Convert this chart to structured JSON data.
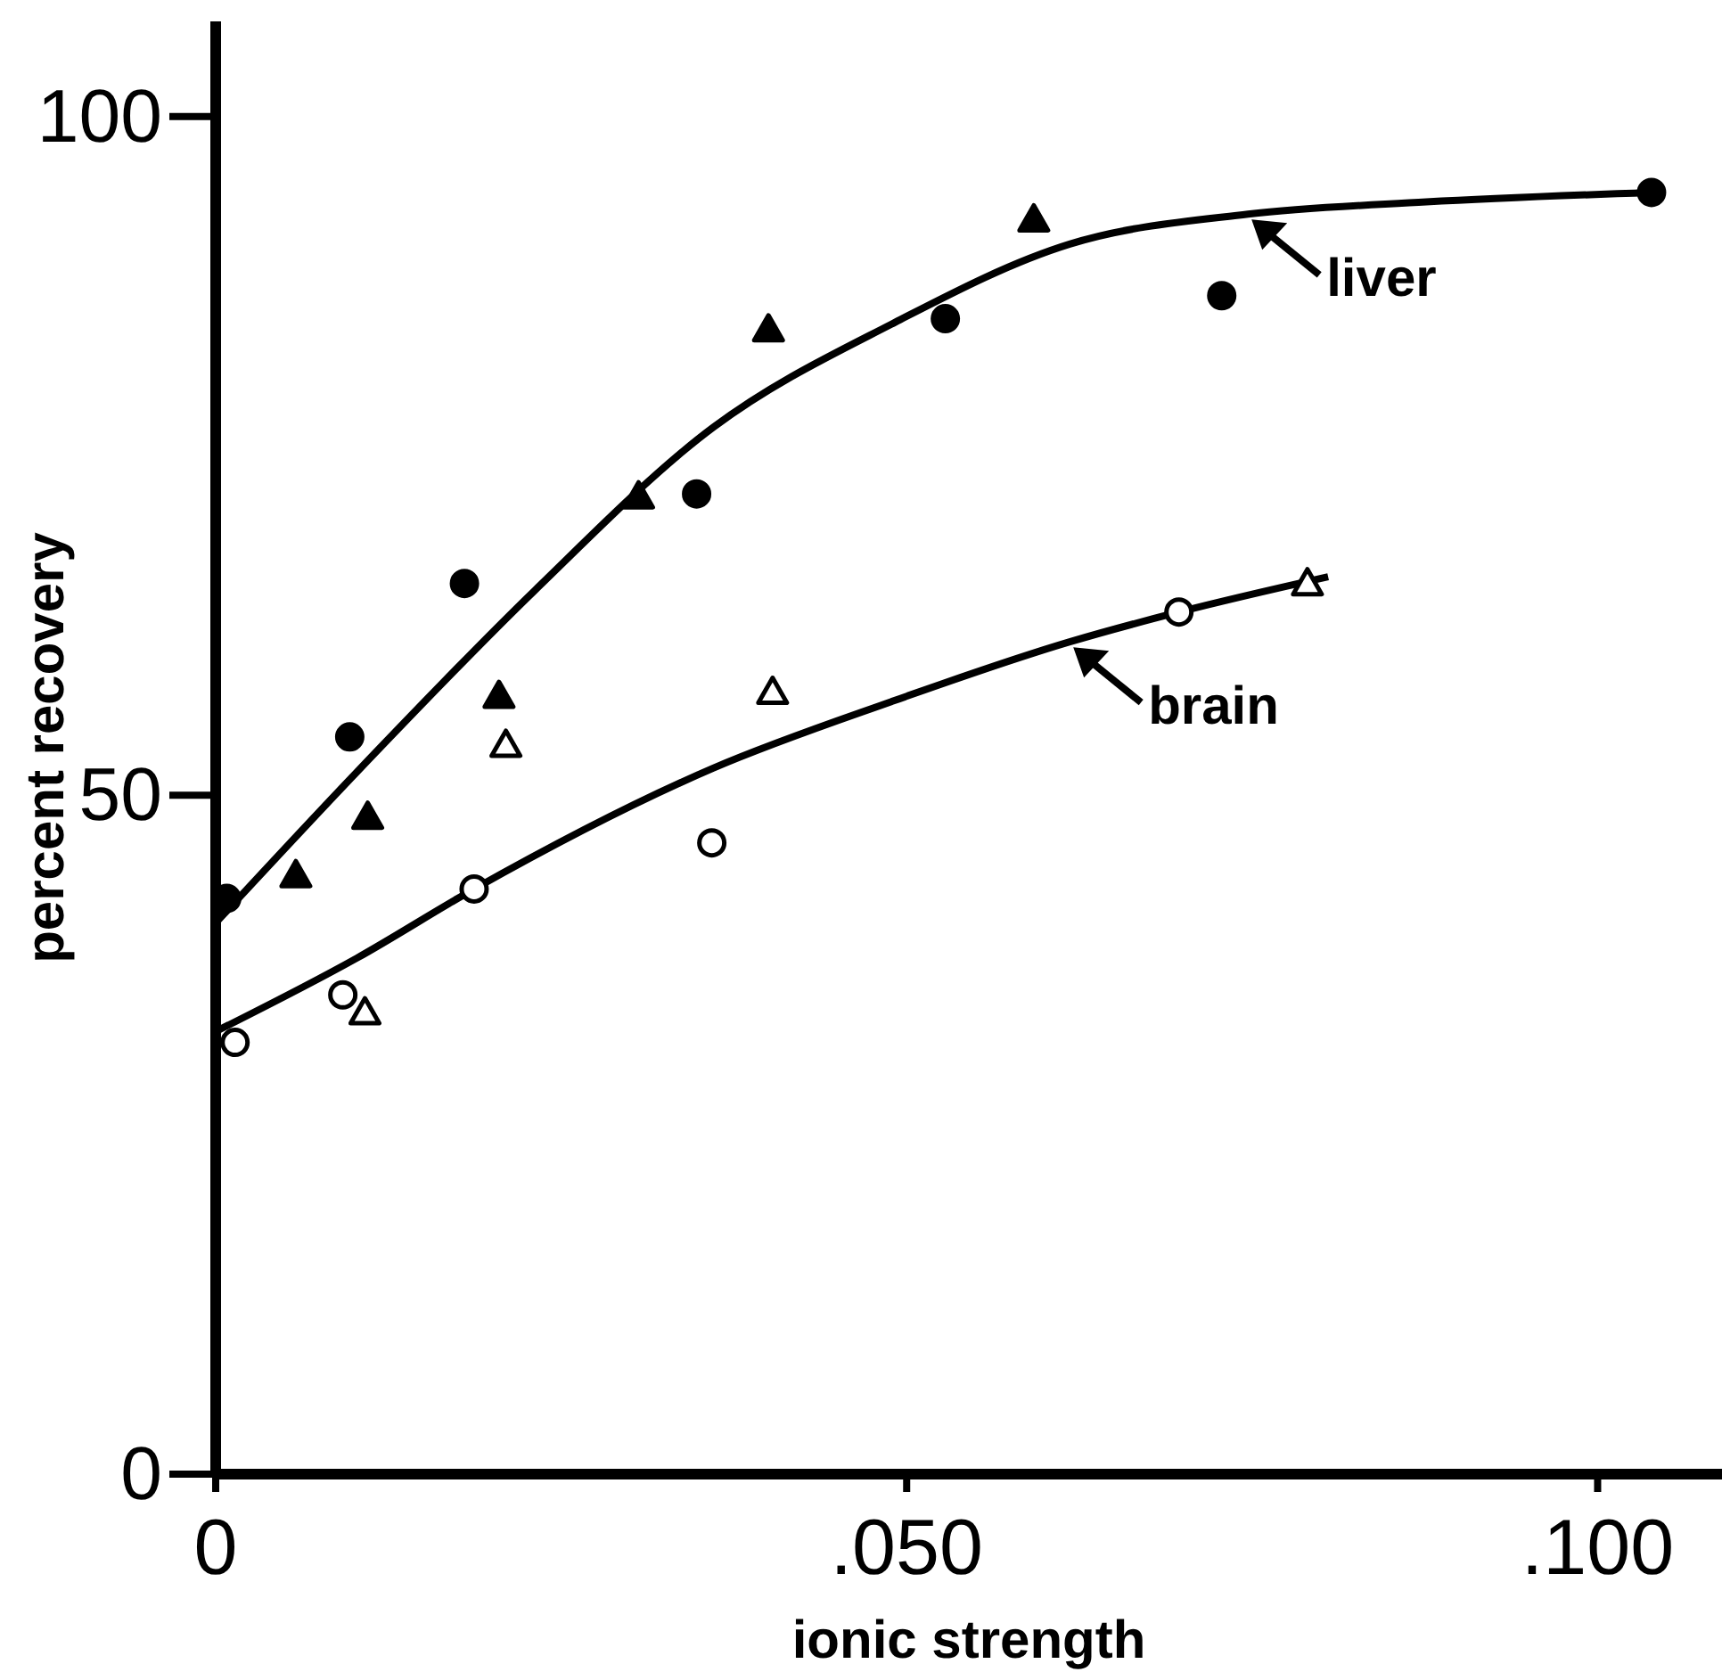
{
  "chart_data": {
    "type": "scatter",
    "xlabel": "ionic strength",
    "ylabel": "percent recovery",
    "xlim": [
      0,
      0.109
    ],
    "xticks": [
      0,
      {
        "value": 0.05,
        "label": ".050"
      },
      {
        "value": 0.1,
        "label": ".100"
      }
    ],
    "ylim": [
      0,
      107
    ],
    "yticks": [
      0,
      50,
      100
    ],
    "legend": "right",
    "series": [
      {
        "marker": "circle",
        "color": "#000000",
        "x": [
          0.0008,
          0.0097,
          0.018,
          0.0348,
          0.0528,
          0.0728,
          0.1039
        ],
        "values": [
          42.4,
          54.3,
          65.6,
          72.2,
          85.1,
          86.8,
          94.4
        ]
      },
      {
        "marker": "triangle",
        "color": "#000000",
        "x": [
          0.0058,
          0.011,
          0.0205,
          0.0306,
          0.04,
          0.0592
        ],
        "values": [
          44.1,
          48.4,
          57.3,
          72.0,
          84.3,
          92.4
        ]
      },
      {
        "marker": "circle",
        "color": "#ffffff",
        "x": [
          0.0014,
          0.0092,
          0.0187,
          0.0359,
          0.0697
        ],
        "values": [
          31.8,
          35.3,
          43.1,
          46.5,
          63.5
        ]
      },
      {
        "marker": "triangle",
        "color": "#ffffff",
        "x": [
          0.0108,
          0.021,
          0.0403,
          0.079
        ],
        "values": [
          34.0,
          53.7,
          57.6,
          65.6
        ]
      },
      {
        "type": "line",
        "name": "liver",
        "marker": "none",
        "color": "#000000",
        "x": [
          0,
          0.0102,
          0.0231,
          0.036,
          0.0489,
          0.0618,
          0.0747,
          0.0876,
          0.1039
        ],
        "values": [
          40.6,
          51.7,
          65.1,
          77.1,
          84.7,
          90.6,
          92.8,
          93.7,
          94.4
        ]
      },
      {
        "type": "line",
        "name": "brain",
        "marker": "none",
        "color": "#000000",
        "x": [
          0,
          0.0102,
          0.0187,
          0.036,
          0.0489,
          0.0618,
          0.0697,
          0.0805
        ],
        "values": [
          32.6,
          38,
          43.1,
          52,
          56.9,
          61.3,
          63.5,
          66.1
        ]
      }
    ]
  }
}
